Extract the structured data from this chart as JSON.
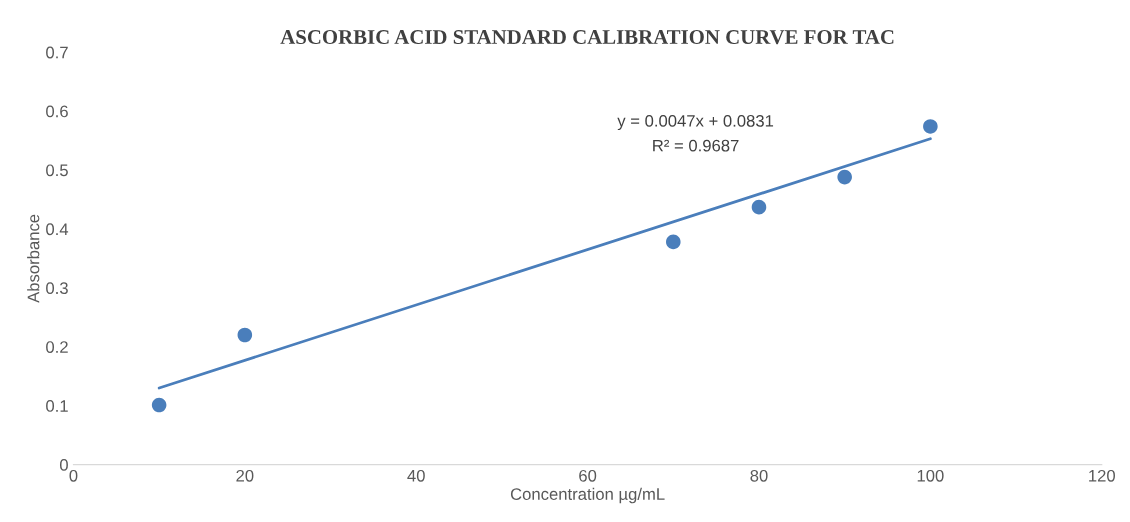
{
  "chart_data": {
    "type": "scatter",
    "title": "ASCORBIC ACID STANDARD CALIBRATION CURVE FOR TAC",
    "xlabel": "Concentration µg/mL",
    "ylabel": "Absorbance",
    "series": [
      {
        "color": "#4a7ebb",
        "marker": "circle",
        "x": [
          10,
          20,
          70,
          80,
          90,
          100
        ],
        "values": [
          0.101,
          0.22,
          0.378,
          0.437,
          0.488,
          0.574
        ]
      },
      {
        "type": "line",
        "marker": "none",
        "color": "#4a7ebb",
        "x": [
          10,
          100
        ],
        "values": [
          0.13,
          0.553
        ]
      }
    ],
    "annotations": [
      "y = 0.0047x + 0.0831",
      "R² = 0.9687"
    ],
    "xlim": [
      0,
      120
    ],
    "xticks": [
      0,
      20,
      40,
      60,
      80,
      100,
      120
    ],
    "ylim": [
      0,
      0.7
    ],
    "yticks": [
      0,
      0.1,
      0.2,
      0.3,
      0.4,
      0.5,
      0.6,
      0.7
    ],
    "grid": false,
    "legend": false
  }
}
